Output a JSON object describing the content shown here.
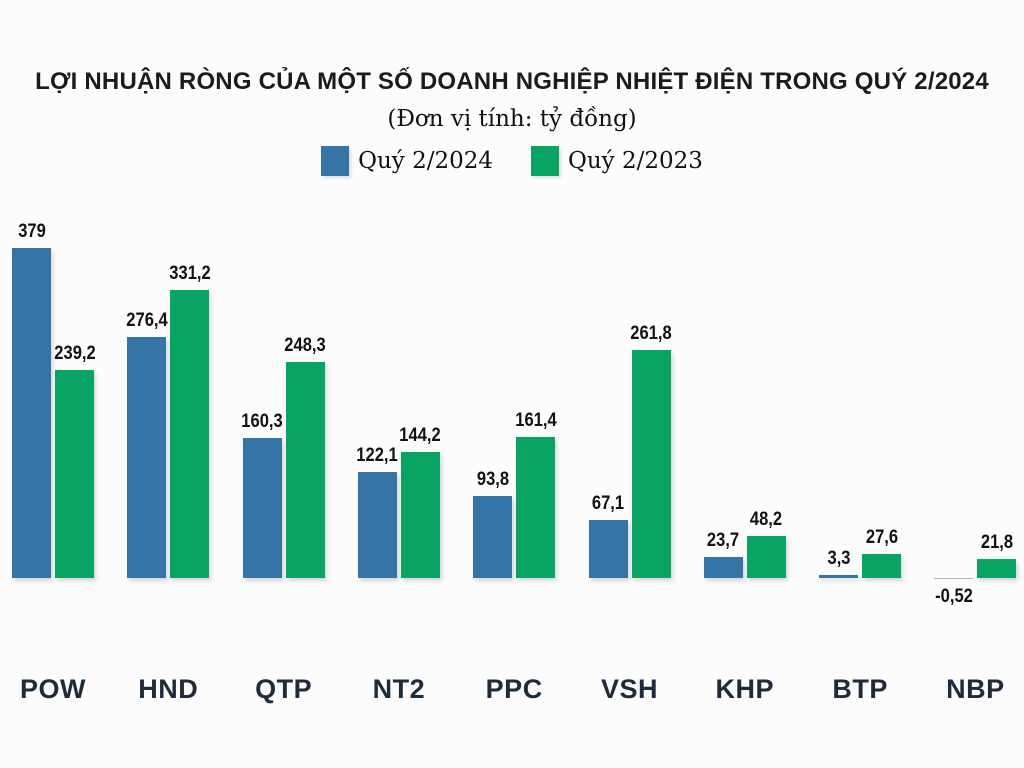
{
  "title": "LỢI NHUẬN RÒNG CỦA MỘT SỐ DOANH NGHIỆP NHIỆT ĐIỆN TRONG QUÝ 2/2024",
  "subtitle": "(Đơn vị tính: tỷ đồng)",
  "unit": "tỷ đồng",
  "colors": {
    "q2_2024_blue": "#3674A6",
    "q2_2023_green": "#09A464",
    "title_text": "#1B1B1B",
    "category_text": "#1E2B3B",
    "value_text": "#121212",
    "background": "#FCFCFC"
  },
  "legend": [
    {
      "label": "Quý 2/2024",
      "color": "#3674A6"
    },
    {
      "label": "Quý 2/2023",
      "color": "#09A464"
    }
  ],
  "chart_data": {
    "type": "bar",
    "title": "LỢI NHUẬN RÒNG CỦA MỘT SỐ DOANH NGHIỆP NHIỆT ĐIỆN TRONG QUÝ 2/2024",
    "subtitle": "(Đơn vị tính: tỷ đồng)",
    "categories": [
      "POW",
      "HND",
      "QTP",
      "NT2",
      "PPC",
      "VSH",
      "KHP",
      "BTP",
      "NBP"
    ],
    "series": [
      {
        "name": "Quý 2/2024",
        "color": "#3674A6",
        "values": [
          379,
          276.4,
          160.3,
          122.1,
          93.8,
          67.1,
          23.7,
          3.3,
          -0.52
        ]
      },
      {
        "name": "Quý 2/2023",
        "color": "#09A464",
        "values": [
          239.2,
          331.2,
          248.3,
          144.2,
          161.4,
          261.8,
          48.2,
          27.6,
          21.8
        ]
      }
    ],
    "ylim": [
      -10,
      400
    ],
    "xlabel": "",
    "ylabel": "tỷ đồng",
    "grid": false,
    "axes_shown": false,
    "legend_position": "top",
    "value_labels_shown": true,
    "decimal_separator": ","
  }
}
